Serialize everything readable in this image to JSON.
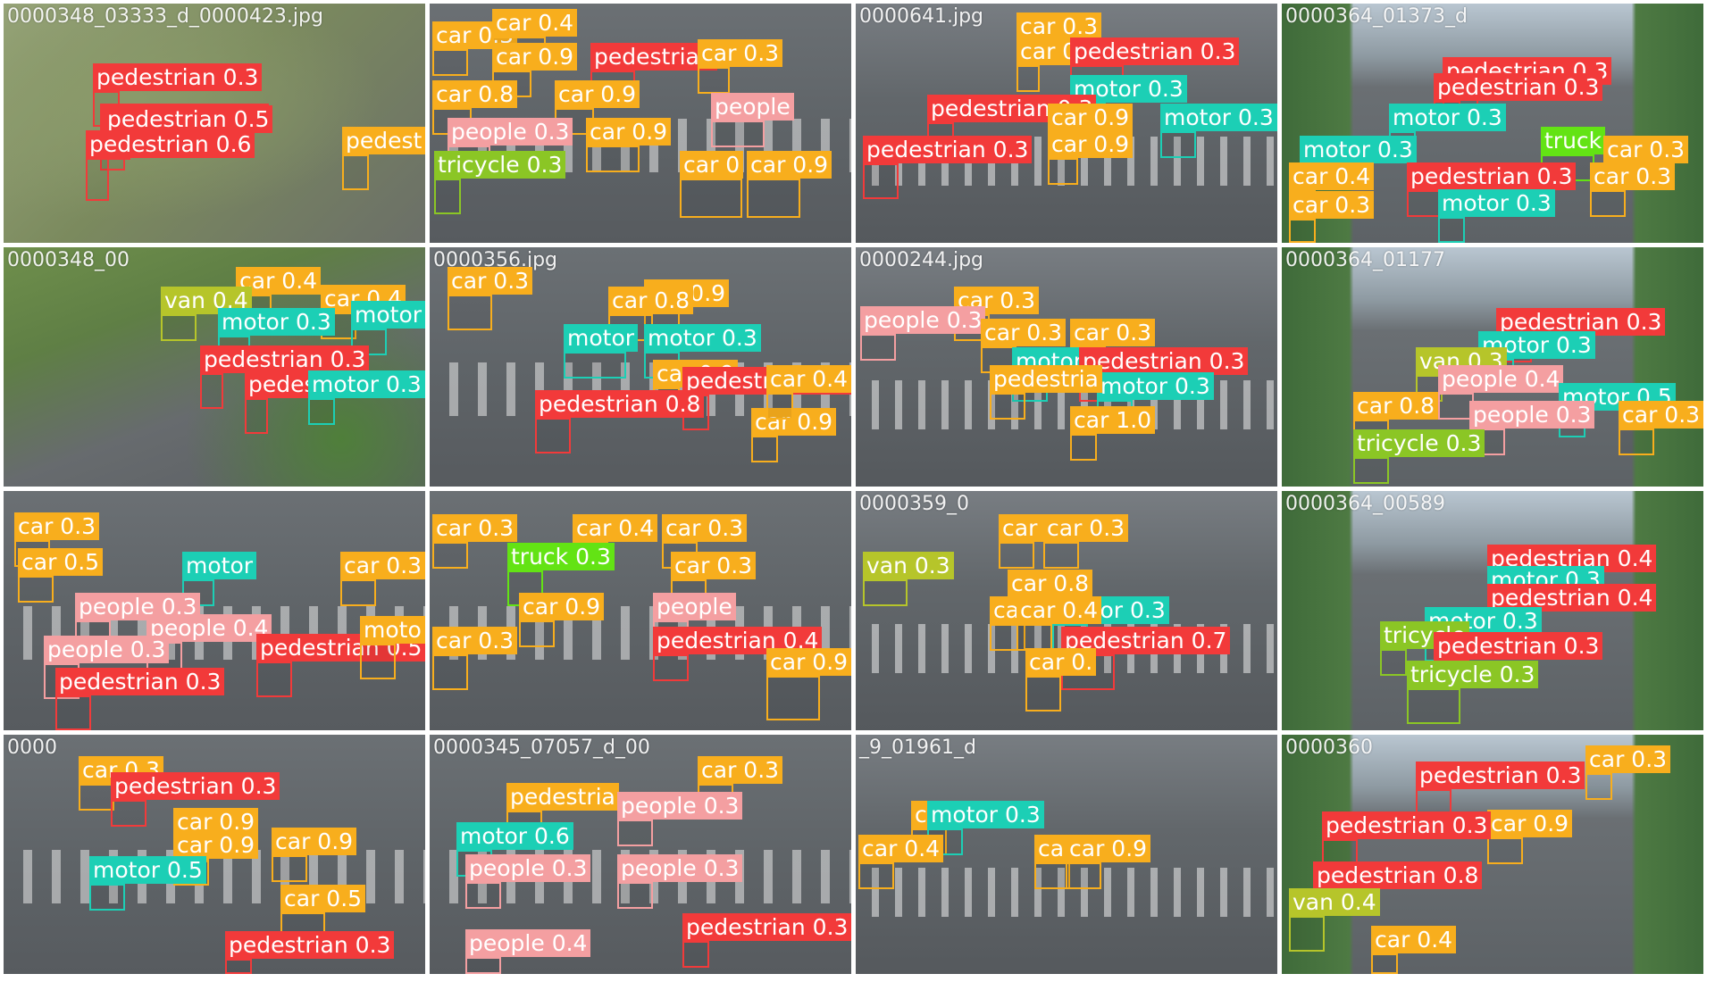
{
  "classes": {
    "pedestrian": {
      "color": "#f23a3a"
    },
    "people": {
      "color": "#f49fa1"
    },
    "car": {
      "color": "#f8ae1d"
    },
    "motor": {
      "color": "#1ccfb5"
    },
    "van": {
      "color": "#b6c52a"
    },
    "tricycle": {
      "color": "#8bc625"
    },
    "truck": {
      "color": "#63e314"
    }
  },
  "tiles": [
    {
      "filename": "0000348_03333_d_0000423.jpg",
      "scene": "park",
      "detections": [
        {
          "label": "pedestrian 0.3"
        },
        {
          "label": "pedestrian 0.5"
        },
        {
          "label": "pedestrian 0.5"
        },
        {
          "label": "pedestrian 0.6"
        },
        {
          "label": "pedest"
        }
      ]
    },
    {
      "filename": "",
      "scene": "road",
      "detections": [
        {
          "label": "car 0.3"
        },
        {
          "label": "car 0.4"
        },
        {
          "label": "car 0.9"
        },
        {
          "label": "pedestrian"
        },
        {
          "label": "car 0.3"
        },
        {
          "label": "car 0.8"
        },
        {
          "label": "car 0.9"
        },
        {
          "label": "people 0.3"
        },
        {
          "label": "car 0.9"
        },
        {
          "label": "tricycle 0.3"
        },
        {
          "label": "car 0"
        },
        {
          "label": "car 0.9"
        },
        {
          "label": "people"
        }
      ]
    },
    {
      "filename": "0000641.jpg",
      "scene": "cross",
      "detections": [
        {
          "label": "car 0.3"
        },
        {
          "label": "car 0.3"
        },
        {
          "label": "pedestrian 0.3"
        },
        {
          "label": "motor 0.3"
        },
        {
          "label": "pedestrian 0.3"
        },
        {
          "label": "car 0.9"
        },
        {
          "label": "car 0.9"
        },
        {
          "label": "pedestrian 0.3"
        },
        {
          "label": "motor 0.3"
        }
      ]
    },
    {
      "filename": "0000364_01373_d",
      "scene": "street",
      "detections": [
        {
          "label": "pedestrian 0.3"
        },
        {
          "label": "pedestrian 0.3"
        },
        {
          "label": "motor 0.3"
        },
        {
          "label": "motor 0.3"
        },
        {
          "label": "truck"
        },
        {
          "label": "car 0.3"
        },
        {
          "label": "motor 0.3"
        },
        {
          "label": "pedestrian 0.3"
        },
        {
          "label": "car 0.4"
        },
        {
          "label": "car 0.3"
        },
        {
          "label": "motor 0.3"
        },
        {
          "label": "car 0.3"
        }
      ]
    },
    {
      "filename": "0000348_00",
      "scene": "green",
      "detections": [
        {
          "label": "car 0.4"
        },
        {
          "label": "van 0.4"
        },
        {
          "label": "car 0.4"
        },
        {
          "label": "motor 0.3"
        },
        {
          "label": "motor"
        },
        {
          "label": "pedestrian 0.3"
        },
        {
          "label": "pedestrian 0"
        },
        {
          "label": "motor 0.3"
        }
      ]
    },
    {
      "filename": "0000356.jpg",
      "scene": "road",
      "detections": [
        {
          "label": "car 0.3"
        },
        {
          "label": "car 0.9"
        },
        {
          "label": "car 0.8"
        },
        {
          "label": "motor"
        },
        {
          "label": "motor 0.3"
        },
        {
          "label": "car 0.9"
        },
        {
          "label": "pedestrian 0.7"
        },
        {
          "label": "pedestrian 0.8"
        },
        {
          "label": "car 0.9"
        },
        {
          "label": "car 0.4"
        }
      ]
    },
    {
      "filename": "0000244.jpg",
      "scene": "cross",
      "detections": [
        {
          "label": "car 0.3"
        },
        {
          "label": "people 0.3"
        },
        {
          "label": "car 0.3"
        },
        {
          "label": "car 0.3"
        },
        {
          "label": "motor"
        },
        {
          "label": "pedestrian 0.3"
        },
        {
          "label": "motor 0.3"
        },
        {
          "label": "pedestria"
        },
        {
          "label": "car 1.0"
        }
      ]
    },
    {
      "filename": "0000364_01177",
      "scene": "street",
      "detections": [
        {
          "label": "pedestrian 0.3"
        },
        {
          "label": "motor 0.3"
        },
        {
          "label": "van 0.3"
        },
        {
          "label": "people 0.4"
        },
        {
          "label": "motor 0.5"
        },
        {
          "label": "car 0.8"
        },
        {
          "label": "people 0.3"
        },
        {
          "label": "car 0.3"
        },
        {
          "label": "tricycle 0.3"
        }
      ]
    },
    {
      "filename": "",
      "scene": "road",
      "detections": [
        {
          "label": "car 0.3"
        },
        {
          "label": "car 0.5"
        },
        {
          "label": "motor"
        },
        {
          "label": "car 0.3"
        },
        {
          "label": "people 0.3"
        },
        {
          "label": "people 0.4"
        },
        {
          "label": "pedestrian 0.5"
        },
        {
          "label": "people 0.3"
        },
        {
          "label": "moto"
        },
        {
          "label": "pedestrian 0.3"
        }
      ]
    },
    {
      "filename": "",
      "scene": "road",
      "detections": [
        {
          "label": "car 0.3"
        },
        {
          "label": "car 0.4"
        },
        {
          "label": "car 0.3"
        },
        {
          "label": "truck 0.3"
        },
        {
          "label": "car 0.3"
        },
        {
          "label": "car 0.9"
        },
        {
          "label": "people"
        },
        {
          "label": "car 0.3"
        },
        {
          "label": "pedestrian 0.4"
        },
        {
          "label": "car 0.9"
        }
      ]
    },
    {
      "filename": "0000359_0",
      "scene": "cross",
      "detections": [
        {
          "label": "car 0.3"
        },
        {
          "label": "car 0.3"
        },
        {
          "label": "van 0.3"
        },
        {
          "label": "car 0.8"
        },
        {
          "label": "car 0.3"
        },
        {
          "label": "motor 0.3"
        },
        {
          "label": "car 0.4"
        },
        {
          "label": "pedestrian 0.7"
        },
        {
          "label": "car 0."
        }
      ]
    },
    {
      "filename": "0000364_00589",
      "scene": "street",
      "detections": [
        {
          "label": "pedestrian 0.4"
        },
        {
          "label": "motor 0.3"
        },
        {
          "label": "pedestrian 0.4"
        },
        {
          "label": "motor 0.3"
        },
        {
          "label": "tricycle"
        },
        {
          "label": "pedestrian 0.3"
        },
        {
          "label": "tricycle 0.3"
        }
      ]
    },
    {
      "filename": "0000",
      "scene": "road",
      "detections": [
        {
          "label": "car 0.3"
        },
        {
          "label": "pedestrian 0.3"
        },
        {
          "label": "car 0.9"
        },
        {
          "label": "car 0.9"
        },
        {
          "label": "motor 0.5"
        },
        {
          "label": "car 0.9"
        },
        {
          "label": "car 0.5"
        },
        {
          "label": "pedestrian 0.3"
        }
      ]
    },
    {
      "filename": "0000345_07057_d_00",
      "scene": "road",
      "detections": [
        {
          "label": "car 0.3"
        },
        {
          "label": "pedestria"
        },
        {
          "label": "people 0.3"
        },
        {
          "label": "motor 0.6"
        },
        {
          "label": "people 0.3"
        },
        {
          "label": "people 0.3"
        },
        {
          "label": "people 0.4"
        },
        {
          "label": "pedestrian 0.3"
        }
      ]
    },
    {
      "filename": "_9_01961_d",
      "scene": "cross",
      "detections": [
        {
          "label": "car 0.3"
        },
        {
          "label": "motor 0.3"
        },
        {
          "label": "car 0.9"
        },
        {
          "label": "car 0.9"
        },
        {
          "label": "car 0.4"
        }
      ]
    },
    {
      "filename": "0000360",
      "scene": "street",
      "detections": [
        {
          "label": "pedestrian 0.3"
        },
        {
          "label": "car 0.3"
        },
        {
          "label": "car 0.9"
        },
        {
          "label": "pedestrian 0.3"
        },
        {
          "label": "pedestrian 0.8"
        },
        {
          "label": "van 0.4"
        },
        {
          "label": "car 0.4"
        }
      ]
    }
  ]
}
